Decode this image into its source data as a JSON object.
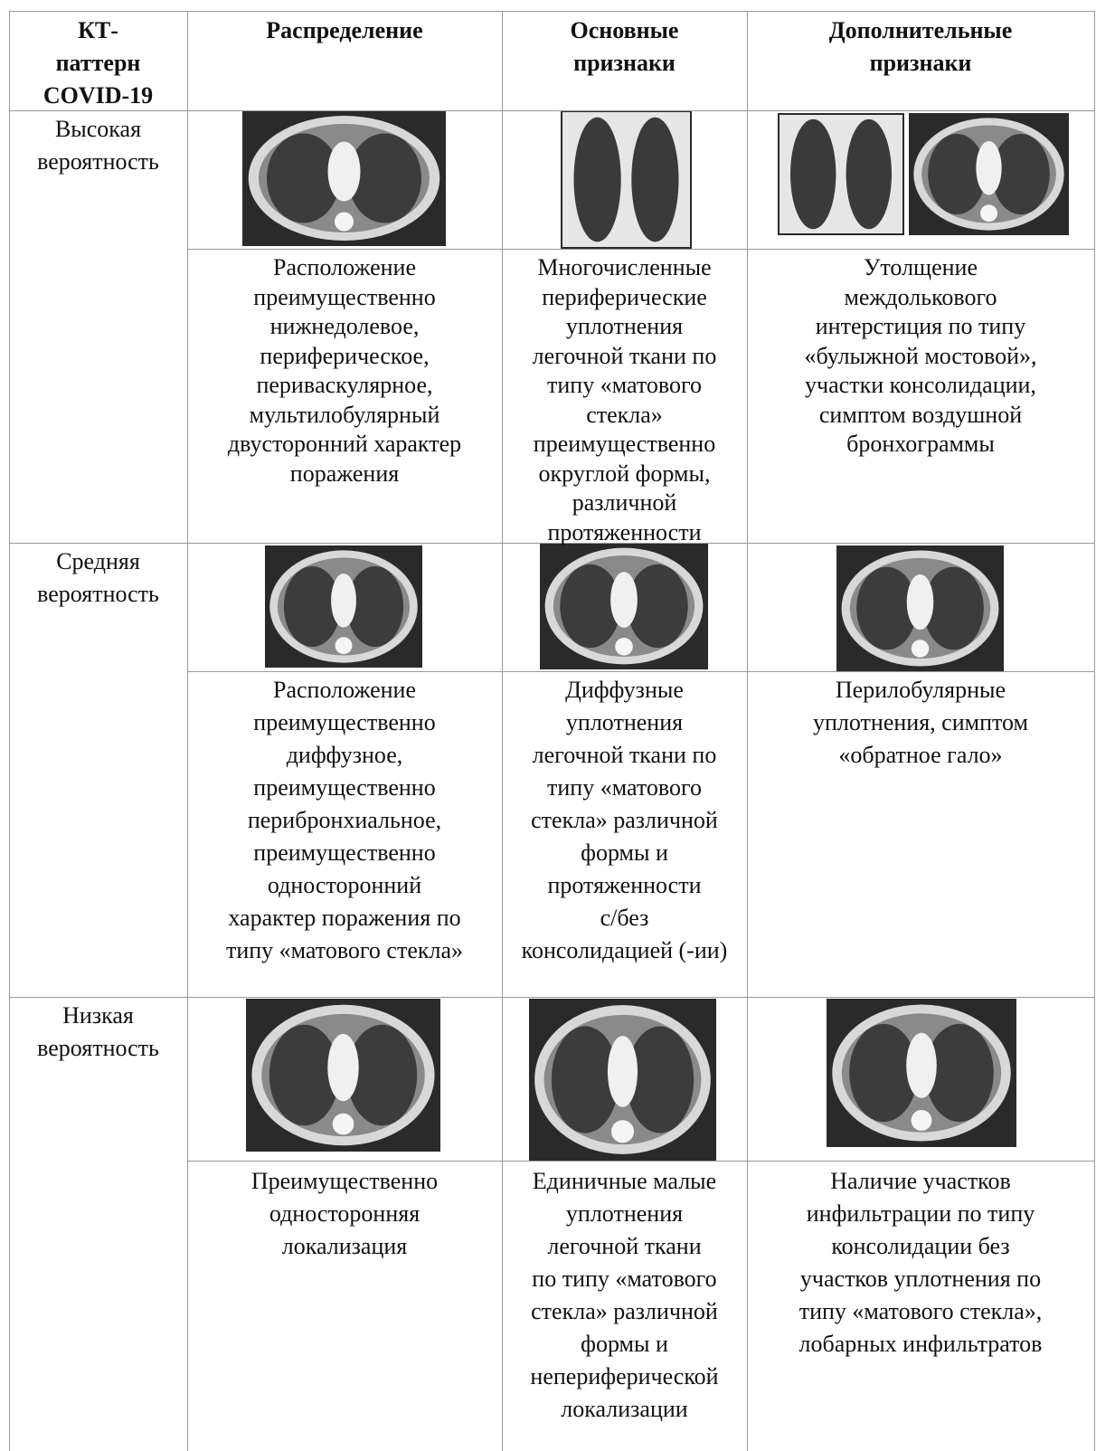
{
  "table": {
    "header": [
      [
        "КТ-",
        "паттерн",
        "COVID-19"
      ],
      [
        "Распределение"
      ],
      [
        "Основные",
        "признаки"
      ],
      [
        "Дополнительные",
        "признаки"
      ]
    ],
    "rows": [
      {
        "label": [
          "Высокая",
          "вероятность"
        ],
        "cells": [
          [
            "Расположение",
            "преимущественно",
            "нижнедолевое,",
            "периферическое,",
            "перивaскулярное,",
            "мультилобулярный",
            "двусторонний характер",
            "поражения"
          ],
          [
            "Многочисленные",
            "периферические",
            "уплотнения",
            "легочной ткани по",
            "типу «матового",
            "стекла»",
            "преимущественно",
            "округлой формы,",
            "различной",
            "протяженности"
          ],
          [
            "Утолщение",
            "междолькового",
            "интерстиция по типу",
            "«булыжной мостовой»,",
            "участки консолидации,",
            "симптом воздушной",
            "бронхограммы"
          ]
        ]
      },
      {
        "label": [
          "Средняя",
          "вероятность"
        ],
        "cells": [
          [
            "Расположение",
            "преимущественно",
            "диффузное,",
            "преимущественно",
            "перибронхиальное,",
            "преимущественно",
            "односторонний",
            "характер поражения по",
            "типу «матового стекла»"
          ],
          [
            "Диффузные",
            "уплотнения",
            "легочной ткани по",
            "типу «матового",
            "стекла» различной",
            "формы и",
            "протяженности",
            "с/без",
            "консолидацией (-ии)"
          ],
          [
            "Перилобулярные",
            "уплотнения, симптом",
            "«обратное гало»"
          ]
        ]
      },
      {
        "label": [
          "Низкая",
          "вероятность"
        ],
        "cells": [
          [
            "Преимущественно",
            "односторонняя",
            "локализация"
          ],
          [
            "Единичные малые",
            "уплотнения",
            "легочной ткани",
            "по типу «матового",
            "стекла» различной",
            "формы и",
            "непериферической",
            "локализации"
          ],
          [
            "Наличие участков",
            "инфильтрации по типу",
            "консолидации без",
            "участков уплотнения по",
            "типу «матового стекла»,",
            "лобарных инфильтратов"
          ]
        ]
      }
    ]
  }
}
